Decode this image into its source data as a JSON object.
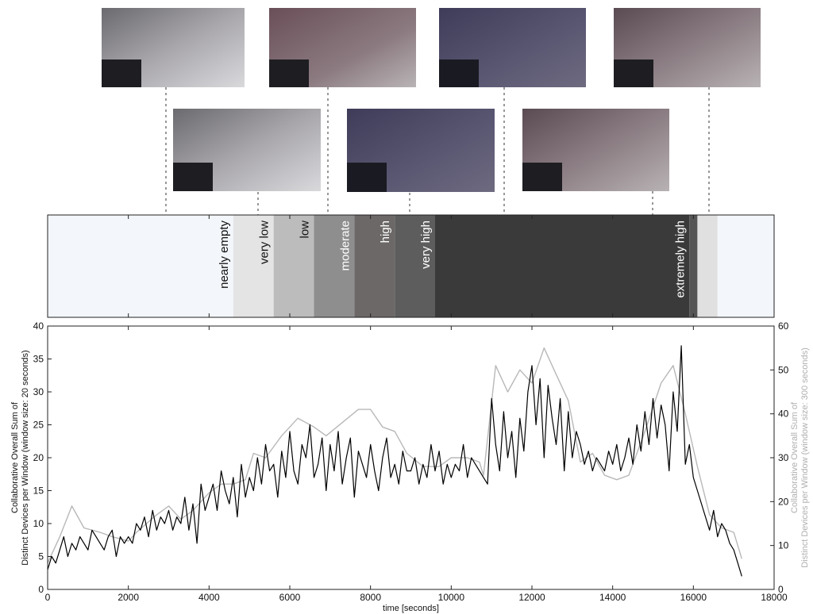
{
  "chart_data": [
    {
      "type": "band",
      "xlim": [
        0,
        18000
      ],
      "segments": [
        {
          "start": 0,
          "end": 4600,
          "label": "nearly empty",
          "color": "#f3f6fb"
        },
        {
          "start": 4600,
          "end": 5600,
          "label": "very low",
          "color": "#e4e4e4"
        },
        {
          "start": 5600,
          "end": 6600,
          "label": "low",
          "color": "#bcbcbc"
        },
        {
          "start": 6600,
          "end": 7600,
          "label": "moderate",
          "color": "#8e8e8e"
        },
        {
          "start": 7600,
          "end": 8600,
          "label": "high",
          "color": "#6d6868"
        },
        {
          "start": 8600,
          "end": 9600,
          "label": "very high",
          "color": "#5e5d5d"
        },
        {
          "start": 9600,
          "end": 15900,
          "label": "extremely high",
          "color": "#3b3a3a"
        },
        {
          "start": 15900,
          "end": 16100,
          "color": "#555555"
        },
        {
          "start": 16100,
          "end": 16600,
          "color": "#e0e0e0"
        },
        {
          "start": 16600,
          "end": 18000,
          "color": "#f3f6fb"
        }
      ]
    },
    {
      "type": "line",
      "xlabel": "time [seconds]",
      "ylabel": [
        "Collaborative Overall Sum of",
        "Distinct Devices per Window (window size: 20 seconds)"
      ],
      "y2label": [
        "Collaborative Overall Sum of",
        "Distinct Devices per Window (window size: 300 seconds)"
      ],
      "xlim": [
        0,
        18000
      ],
      "xticks": [
        0,
        2000,
        4000,
        6000,
        8000,
        10000,
        12000,
        14000,
        16000,
        18000
      ],
      "ylim": [
        0,
        40
      ],
      "yticks": [
        0,
        5,
        10,
        15,
        20,
        25,
        30,
        35,
        40
      ],
      "y2lim": [
        0,
        60
      ],
      "y2ticks": [
        0,
        10,
        20,
        30,
        40,
        50,
        60
      ],
      "grid": false,
      "series": [
        {
          "color": "#000000",
          "x": [
            0,
            100,
            200,
            300,
            400,
            500,
            600,
            700,
            800,
            900,
            1000,
            1100,
            1200,
            1300,
            1400,
            1500,
            1600,
            1700,
            1800,
            1900,
            2000,
            2100,
            2200,
            2300,
            2400,
            2500,
            2600,
            2700,
            2800,
            2900,
            3000,
            3100,
            3200,
            3300,
            3400,
            3500,
            3600,
            3700,
            3800,
            3900,
            4000,
            4100,
            4200,
            4300,
            4400,
            4500,
            4600,
            4700,
            4800,
            4900,
            5000,
            5100,
            5200,
            5300,
            5400,
            5500,
            5600,
            5700,
            5800,
            5900,
            6000,
            6100,
            6200,
            6300,
            6400,
            6500,
            6600,
            6700,
            6800,
            6900,
            7000,
            7100,
            7200,
            7300,
            7400,
            7500,
            7600,
            7700,
            7800,
            7900,
            8000,
            8100,
            8200,
            8300,
            8400,
            8500,
            8600,
            8700,
            8800,
            8900,
            9000,
            9100,
            9200,
            9300,
            9400,
            9500,
            9600,
            9700,
            9800,
            9900,
            10000,
            10100,
            10200,
            10300,
            10400,
            10500,
            10600,
            10700,
            10800,
            10900,
            11000,
            11100,
            11200,
            11300,
            11400,
            11500,
            11600,
            11700,
            11800,
            11900,
            12000,
            12100,
            12200,
            12300,
            12400,
            12500,
            12600,
            12700,
            12800,
            12900,
            13000,
            13100,
            13200,
            13300,
            13400,
            13500,
            13600,
            13700,
            13800,
            13900,
            14000,
            14100,
            14200,
            14300,
            14400,
            14500,
            14600,
            14700,
            14800,
            14900,
            15000,
            15100,
            15200,
            15300,
            15400,
            15500,
            15600,
            15700,
            15800,
            15900,
            16000,
            16100,
            16200,
            16300,
            16400,
            16500,
            16600,
            16700,
            16800,
            16900,
            17000,
            17100,
            17200
          ],
          "values": [
            3,
            5,
            4,
            6,
            8,
            5,
            7,
            6,
            8,
            7,
            6,
            9,
            8,
            7,
            6,
            8,
            9,
            5,
            8,
            7,
            8,
            7,
            10,
            9,
            11,
            8,
            12,
            9,
            11,
            10,
            12,
            9,
            11,
            10,
            14,
            9,
            13,
            7,
            16,
            12,
            14,
            16,
            12,
            18,
            15,
            13,
            17,
            11,
            19,
            14,
            17,
            15,
            20,
            16,
            22,
            18,
            19,
            14,
            21,
            17,
            24,
            18,
            16,
            22,
            20,
            25,
            17,
            19,
            23,
            15,
            22,
            18,
            24,
            16,
            20,
            23,
            14,
            21,
            19,
            17,
            22,
            18,
            15,
            20,
            23,
            17,
            19,
            16,
            21,
            18,
            18,
            20,
            16,
            19,
            17,
            22,
            18,
            21,
            16,
            19,
            17,
            19,
            18,
            22,
            17,
            20,
            19,
            18,
            17,
            16,
            29,
            22,
            18,
            27,
            20,
            24,
            17,
            26,
            21,
            30,
            34,
            25,
            32,
            20,
            31,
            26,
            22,
            29,
            18,
            27,
            20,
            24,
            22,
            19,
            21,
            18,
            20,
            19,
            18,
            21,
            19,
            22,
            18,
            20,
            23,
            19,
            25,
            21,
            27,
            22,
            29,
            23,
            28,
            25,
            18,
            30,
            24,
            37,
            19,
            22,
            17,
            15,
            13,
            11,
            9,
            12,
            8,
            10,
            9,
            7,
            6,
            4,
            2
          ]
        },
        {
          "color": "#b8b8b8",
          "axis": "y2",
          "x": [
            0,
            300,
            600,
            900,
            1300,
            1600,
            2000,
            2200,
            2700,
            3000,
            3300,
            3600,
            4000,
            4300,
            4600,
            4900,
            5100,
            5400,
            5800,
            6200,
            6600,
            6900,
            7300,
            7700,
            8000,
            8300,
            8600,
            8900,
            9300,
            9700,
            10000,
            10400,
            10700,
            10800,
            11100,
            11400,
            11700,
            12000,
            12300,
            12600,
            12900,
            13200,
            13500,
            13800,
            14100,
            14400,
            14800,
            15200,
            15500,
            15800,
            16100,
            16400,
            16700,
            17000,
            17200
          ],
          "values": [
            6,
            12,
            19,
            14,
            13,
            12,
            11,
            13,
            17,
            19,
            16,
            18,
            22,
            24,
            24,
            25,
            31,
            30,
            35,
            39,
            37,
            35,
            38,
            41,
            41,
            37,
            36,
            31,
            28,
            28,
            30,
            30,
            29,
            26,
            51,
            45,
            50,
            47,
            55,
            49,
            43,
            29,
            31,
            26,
            25,
            26,
            36,
            47,
            51,
            40,
            28,
            17,
            14,
            13,
            7
          ]
        }
      ]
    }
  ]
}
